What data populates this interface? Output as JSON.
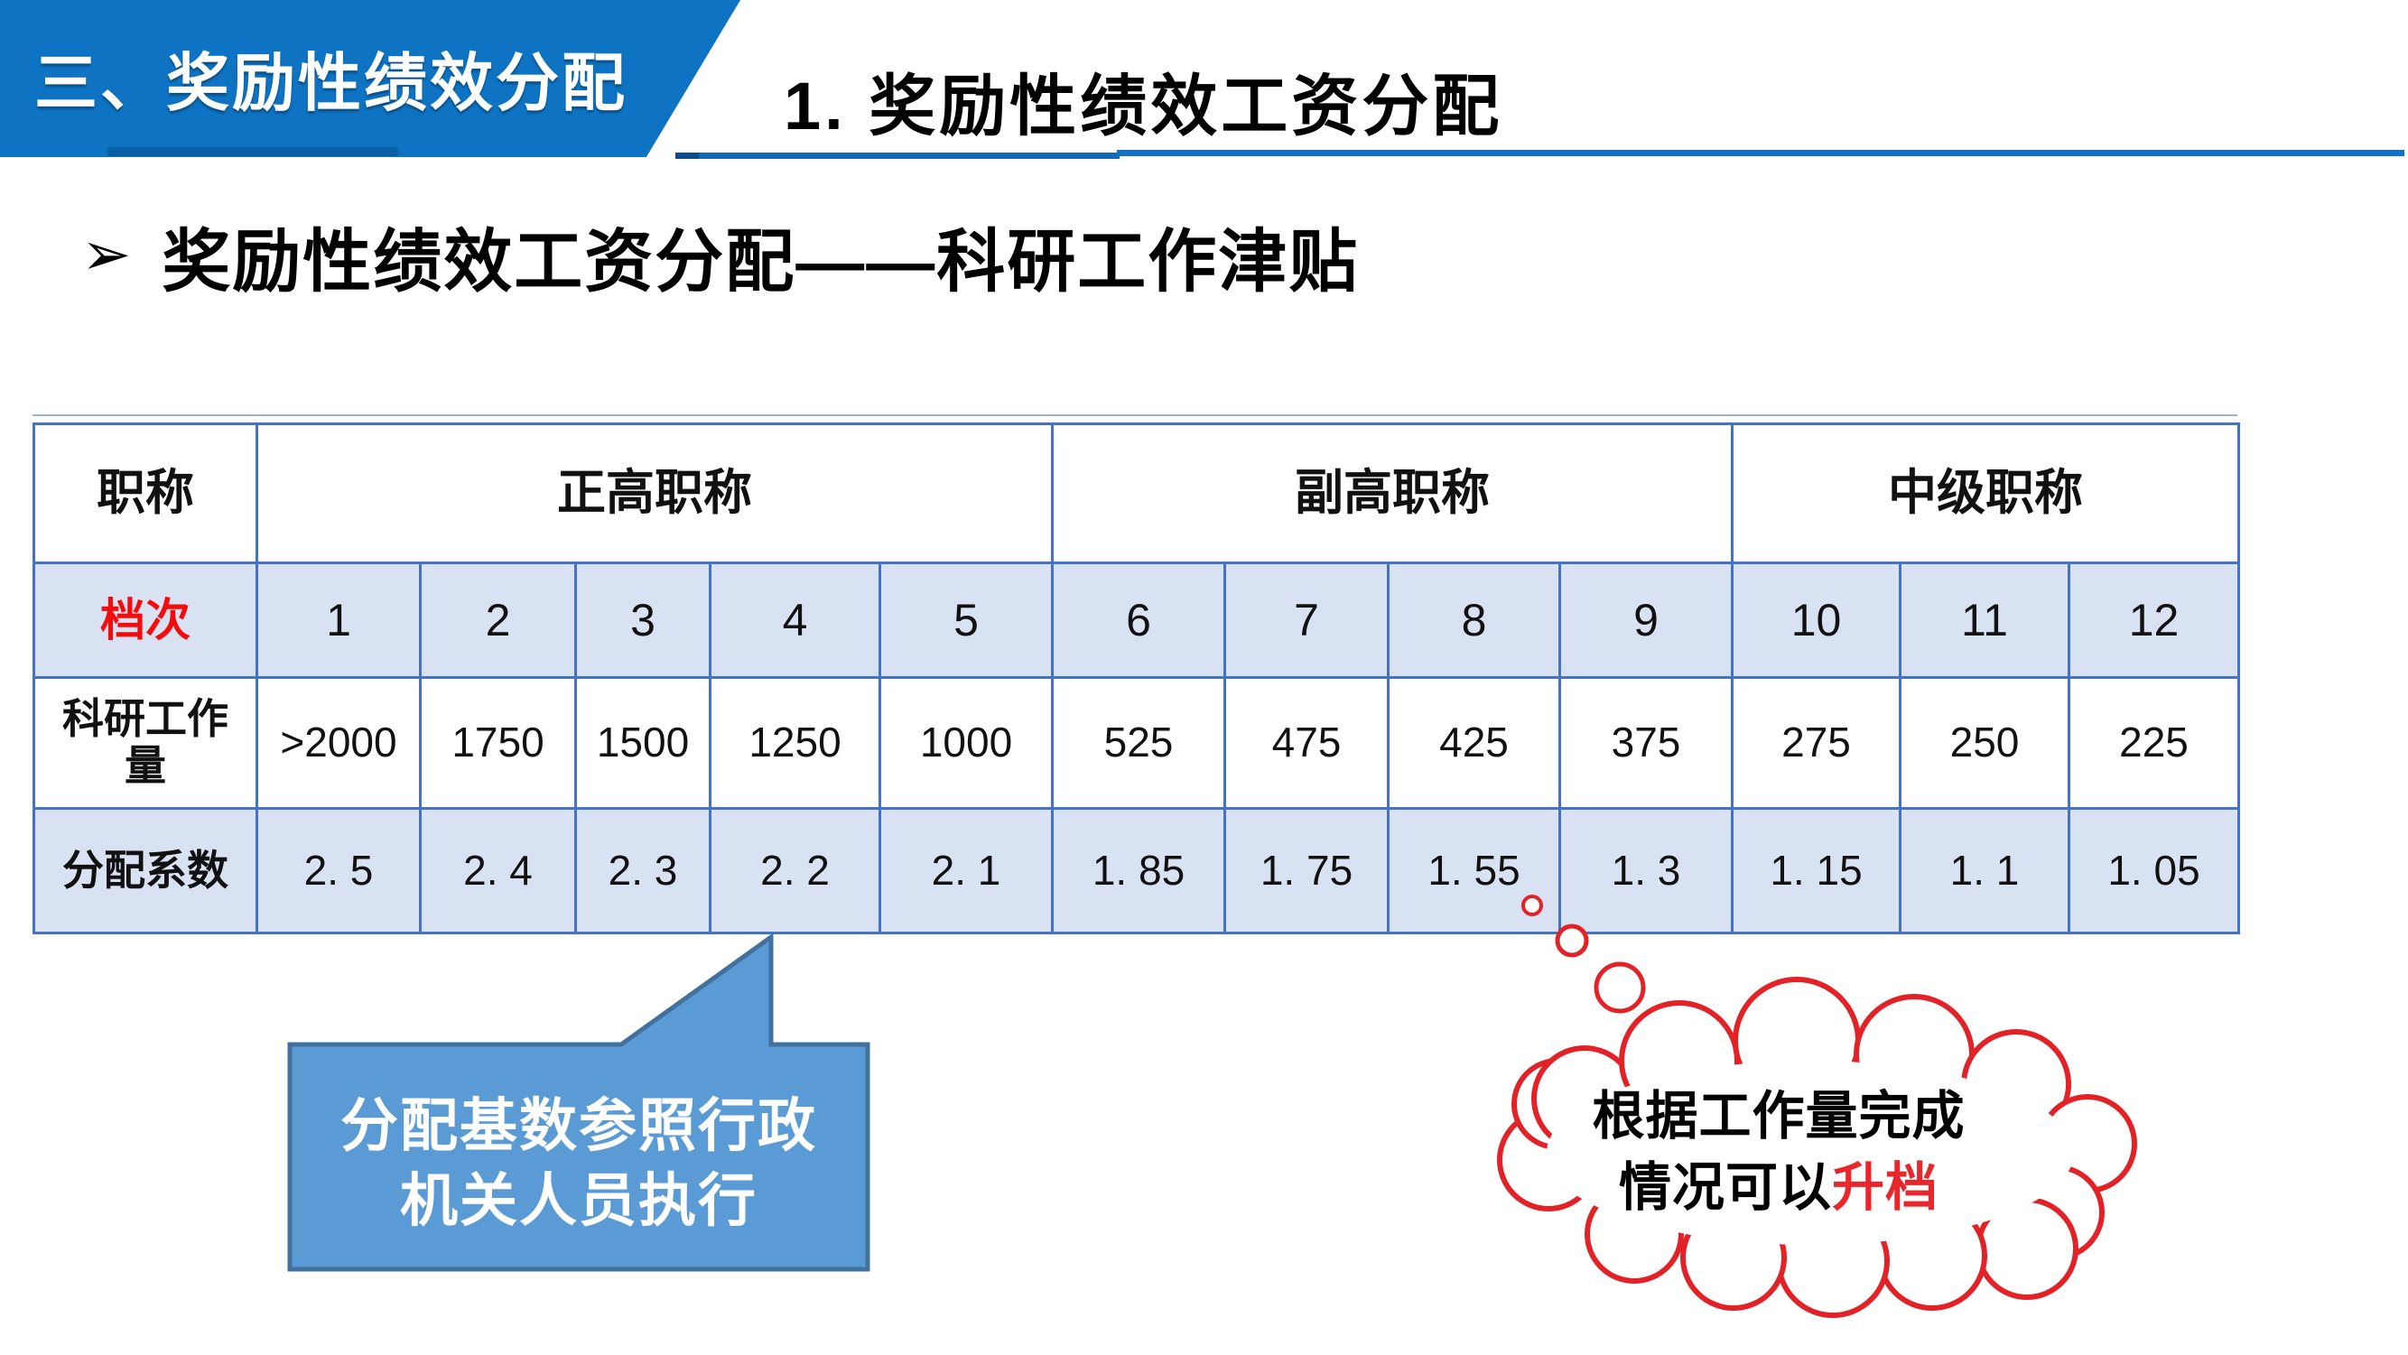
{
  "banner": {
    "title": "三、奖励性绩效分配"
  },
  "subtitle": "1. 奖励性绩效工资分配",
  "heading": {
    "bullet": "➢",
    "text": "奖励性绩效工资分配——科研工作津贴"
  },
  "table": {
    "corner_label": "职称",
    "groups": [
      {
        "label": "正高职称",
        "span": 5
      },
      {
        "label": "副高职称",
        "span": 4
      },
      {
        "label": "中级职称",
        "span": 3
      }
    ],
    "row_labels": {
      "grade": "档次",
      "workload": "科研工作量",
      "coef": "分配系数"
    },
    "grades": [
      "1",
      "2",
      "3",
      "4",
      "5",
      "6",
      "7",
      "8",
      "9",
      "10",
      "11",
      "12"
    ],
    "workload": [
      ">2000",
      "1750",
      "1500",
      "1250",
      "1000",
      "525",
      "475",
      "425",
      "375",
      "275",
      "250",
      "225"
    ],
    "coef": [
      "2. 5",
      "2. 4",
      "2. 3",
      "2. 2",
      "2. 1",
      "1. 85",
      "1. 75",
      "1. 55",
      "1. 3",
      "1. 15",
      "1. 1",
      "1. 05"
    ]
  },
  "callout": {
    "line1": "分配基数参照行政",
    "line2": "机关人员执行"
  },
  "cloud": {
    "line1": "根据工作量完成",
    "line2_black": "情况可以",
    "line2_red": "升档"
  },
  "colors": {
    "banner_blue": "#0E73C3",
    "rule_blue": "#1173C6",
    "table_border_blue": "#4472C4",
    "cell_light_blue": "#D9E2F3",
    "callout_fill": "#5B9BD5",
    "callout_border": "#41719C",
    "cloud_red": "#E8262C",
    "grade_label_red": "#F40B0B"
  }
}
